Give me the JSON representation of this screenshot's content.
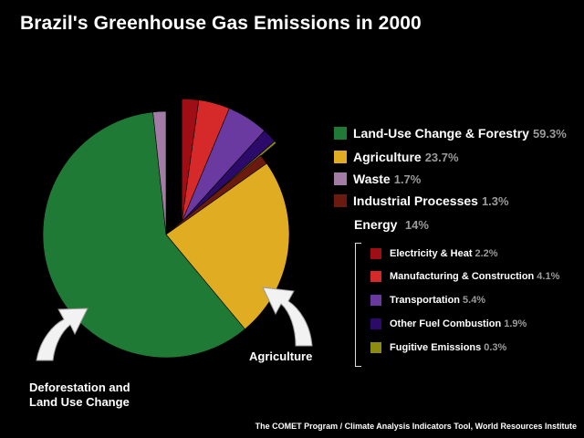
{
  "title": "Brazil's Greenhouse Gas Emissions in 2000",
  "chart_data": {
    "type": "pie",
    "title": "Brazil's Greenhouse Gas Emissions in 2000",
    "slices": [
      {
        "label": "Land-Use Change & Forestry",
        "value": 59.3,
        "display": "59.3%",
        "color": "#1f7a35"
      },
      {
        "label": "Agriculture",
        "value": 23.7,
        "display": "23.7%",
        "color": "#e0ac22"
      },
      {
        "label": "Waste",
        "value": 1.7,
        "display": "1.7%",
        "color": "#a37ca6"
      },
      {
        "label": "Industrial Processes",
        "value": 1.3,
        "display": "1.3%",
        "color": "#6b1a10"
      },
      {
        "label": "Energy",
        "value": 14,
        "display": "14%",
        "exploded": true,
        "components": [
          {
            "label": "Electricity & Heat",
            "value": 2.2,
            "display": "2.2%",
            "color": "#9e0e14"
          },
          {
            "label": "Manufacturing & Construction",
            "value": 4.1,
            "display": "4.1%",
            "color": "#d62a2a"
          },
          {
            "label": "Transportation",
            "value": 5.4,
            "display": "5.4%",
            "color": "#6a3aa0"
          },
          {
            "label": "Other Fuel Combustion",
            "value": 1.9,
            "display": "1.9%",
            "color": "#2c0a6a"
          },
          {
            "label": "Fugitive Emissions",
            "value": 0.3,
            "display": "0.3%",
            "color": "#8c8c10"
          }
        ]
      }
    ],
    "legend_position": "right"
  },
  "legend": {
    "items": [
      {
        "label": "Land-Use Change & Forestry",
        "value": "59.3%",
        "color": "#1f7a35"
      },
      {
        "label": "Agriculture",
        "value": "23.7%",
        "color": "#e0ac22"
      },
      {
        "label": "Waste",
        "value": "1.7%",
        "color": "#a37ca6"
      },
      {
        "label": "Industrial Processes",
        "value": "1.3%",
        "color": "#6b1a10"
      }
    ],
    "energy": {
      "label": "Energy",
      "value": "14%",
      "items": [
        {
          "label": "Electricity & Heat",
          "value": "2.2%",
          "color": "#9e0e14"
        },
        {
          "label": "Manufacturing & Construction",
          "value": "4.1%",
          "color": "#d62a2a"
        },
        {
          "label": "Transportation",
          "value": "5.4%",
          "color": "#6a3aa0"
        },
        {
          "label": "Other Fuel Combustion",
          "value": "1.9%",
          "color": "#2c0a6a"
        },
        {
          "label": "Fugitive Emissions",
          "value": "0.3%",
          "color": "#8c8c10"
        }
      ]
    }
  },
  "annotations": {
    "deforestation_line1": "Deforestation and",
    "deforestation_line2": "Land Use Change",
    "agriculture": "Agriculture"
  },
  "source": "The COMET Program / Climate Analysis Indicators Tool, World Resources Institute"
}
